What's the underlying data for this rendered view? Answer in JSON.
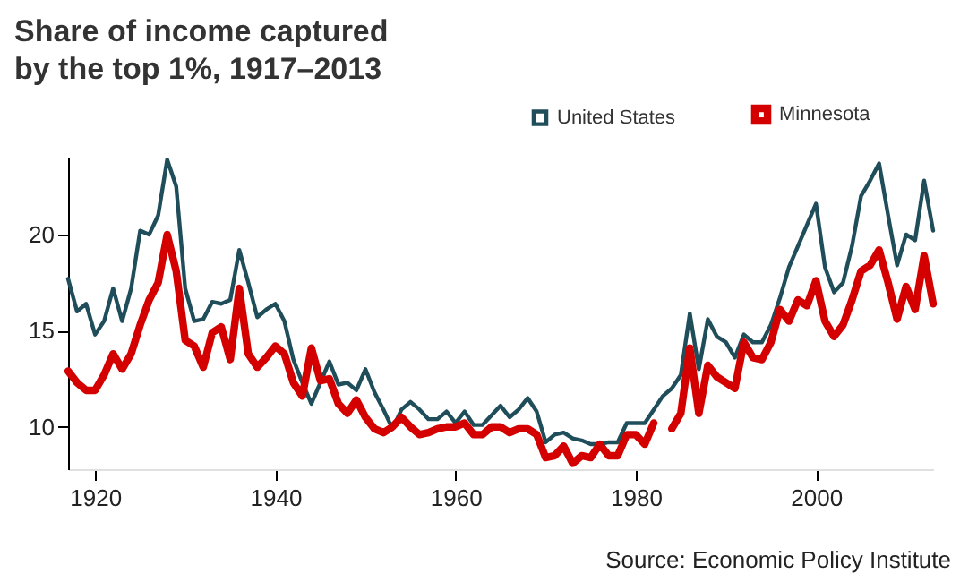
{
  "chart_data": {
    "type": "line",
    "title": "Share of income captured by the top 1%, 1917–2013",
    "x": [
      1917,
      1918,
      1919,
      1920,
      1921,
      1922,
      1923,
      1924,
      1925,
      1926,
      1927,
      1928,
      1929,
      1930,
      1931,
      1932,
      1933,
      1934,
      1935,
      1936,
      1937,
      1938,
      1939,
      1940,
      1941,
      1942,
      1943,
      1944,
      1945,
      1946,
      1947,
      1948,
      1949,
      1950,
      1951,
      1952,
      1953,
      1954,
      1955,
      1956,
      1957,
      1958,
      1959,
      1960,
      1961,
      1962,
      1963,
      1964,
      1965,
      1966,
      1967,
      1968,
      1969,
      1970,
      1971,
      1972,
      1973,
      1974,
      1975,
      1976,
      1977,
      1978,
      1979,
      1980,
      1981,
      1982,
      1983,
      1984,
      1985,
      1986,
      1987,
      1988,
      1989,
      1990,
      1991,
      1992,
      1993,
      1994,
      1995,
      1996,
      1997,
      1998,
      1999,
      2000,
      2001,
      2002,
      2003,
      2004,
      2005,
      2006,
      2007,
      2008,
      2009,
      2010,
      2011,
      2012,
      2013
    ],
    "series": [
      {
        "name": "United States",
        "color": "#1f4e5a",
        "values": [
          17.7,
          16.0,
          16.4,
          14.8,
          15.5,
          17.2,
          15.5,
          17.2,
          20.2,
          20.0,
          21.0,
          23.9,
          22.5,
          17.2,
          15.5,
          15.6,
          16.5,
          16.4,
          16.6,
          19.2,
          17.5,
          15.7,
          16.1,
          16.4,
          15.5,
          13.5,
          12.3,
          11.2,
          12.3,
          13.4,
          12.2,
          12.3,
          11.9,
          13.0,
          11.8,
          10.9,
          9.9,
          10.9,
          11.3,
          10.9,
          10.4,
          10.4,
          10.8,
          10.2,
          10.8,
          10.1,
          10.1,
          10.6,
          11.1,
          10.5,
          10.9,
          11.5,
          10.8,
          9.2,
          9.6,
          9.7,
          9.4,
          9.3,
          9.1,
          9.1,
          9.2,
          9.2,
          10.2,
          10.2,
          10.2,
          10.9,
          11.6,
          12.0,
          12.7,
          15.9,
          13.0,
          15.6,
          14.7,
          14.4,
          13.6,
          14.8,
          14.4,
          14.4,
          15.3,
          16.7,
          18.3,
          19.4,
          20.5,
          21.6,
          18.3,
          17.0,
          17.5,
          19.4,
          22.0,
          22.8,
          23.7,
          21.0,
          18.4,
          20.0,
          19.7,
          22.8,
          20.2
        ]
      },
      {
        "name": "Minnesota",
        "color": "#d40000",
        "values": [
          12.9,
          12.3,
          11.9,
          11.9,
          12.7,
          13.8,
          13.0,
          13.8,
          15.3,
          16.6,
          17.5,
          20.0,
          18.1,
          14.5,
          14.2,
          13.1,
          14.9,
          15.2,
          13.5,
          17.2,
          13.8,
          13.1,
          13.6,
          14.2,
          13.8,
          12.3,
          11.6,
          14.1,
          12.4,
          12.5,
          11.2,
          10.7,
          11.4,
          10.5,
          9.9,
          9.7,
          10.0,
          10.5,
          10.0,
          9.6,
          9.7,
          9.9,
          10.0,
          10.0,
          10.2,
          9.6,
          9.6,
          10.0,
          10.0,
          9.7,
          9.9,
          9.9,
          9.6,
          8.4,
          8.5,
          9.0,
          8.1,
          8.5,
          8.4,
          9.1,
          8.5,
          8.5,
          9.6,
          9.6,
          9.1,
          10.2,
          null,
          9.9,
          10.7,
          14.1,
          10.7,
          13.2,
          12.6,
          12.3,
          12.0,
          14.4,
          13.6,
          13.5,
          14.4,
          16.1,
          15.5,
          16.6,
          16.3,
          17.6,
          15.5,
          14.7,
          15.3,
          16.6,
          18.1,
          18.4,
          19.2,
          17.5,
          15.6,
          17.3,
          16.1,
          18.9,
          16.4
        ]
      }
    ],
    "xlim": [
      1917,
      2013
    ],
    "xticks": [
      1920,
      1940,
      1960,
      1980,
      2000
    ],
    "ylim": [
      7.8,
      24
    ],
    "yticks": [
      10,
      15,
      20
    ],
    "grid": false,
    "legend": "top right",
    "annotations": [
      "Source: Economic Policy Institute"
    ]
  }
}
